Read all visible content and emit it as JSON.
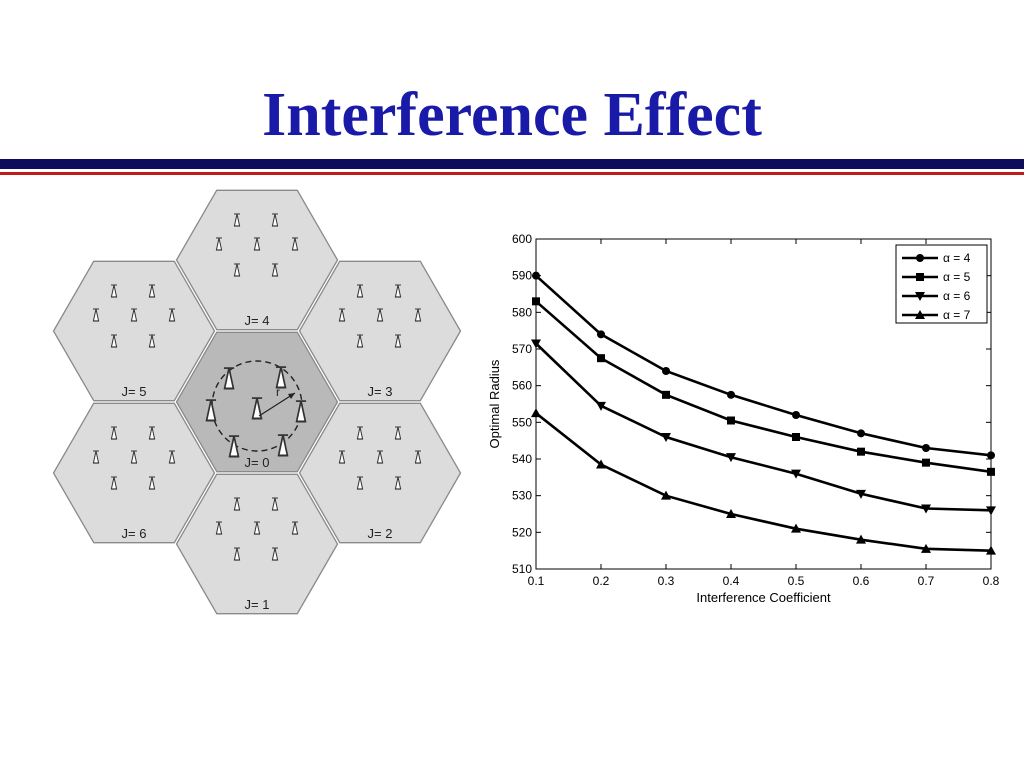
{
  "slide": {
    "title": "Interference Effect"
  },
  "colors": {
    "title": "#1a1aa8",
    "rule_navy": "#0d0d5c",
    "rule_red": "#c01a1a",
    "hex_fill": "#dcdcdc",
    "hex_center_fill": "#b9b9b9"
  },
  "diagram": {
    "cells": [
      {
        "label": "J= 0"
      },
      {
        "label": "J= 1"
      },
      {
        "label": "J= 2"
      },
      {
        "label": "J= 3"
      },
      {
        "label": "J= 4"
      },
      {
        "label": "J= 5"
      },
      {
        "label": "J= 6"
      }
    ],
    "radius_label": "r"
  },
  "chart_data": {
    "type": "line",
    "xlabel": "Interference Coefficient",
    "ylabel": "Optimal Radius",
    "x": [
      0.1,
      0.2,
      0.3,
      0.4,
      0.5,
      0.6,
      0.7,
      0.8
    ],
    "xlim": [
      0.1,
      0.8
    ],
    "ylim": [
      510,
      600
    ],
    "xticks": [
      "0.1",
      "0.2",
      "0.3",
      "0.4",
      "0.5",
      "0.6",
      "0.7",
      "0.8"
    ],
    "yticks": [
      "510",
      "520",
      "530",
      "540",
      "550",
      "560",
      "570",
      "580",
      "590",
      "600"
    ],
    "grid": false,
    "legend_position": "top-right",
    "series": [
      {
        "name": "α = 4",
        "marker": "circle",
        "values": [
          590,
          574,
          564,
          557.5,
          552,
          547,
          543,
          541
        ]
      },
      {
        "name": "α = 5",
        "marker": "square",
        "values": [
          583,
          567.5,
          557.5,
          550.5,
          546,
          542,
          539,
          536.5
        ]
      },
      {
        "name": "α = 6",
        "marker": "triangle-down",
        "values": [
          571.5,
          554.5,
          546,
          540.5,
          536,
          530.5,
          526.5,
          526
        ]
      },
      {
        "name": "α = 7",
        "marker": "triangle-up",
        "values": [
          552.5,
          538.5,
          530,
          525,
          521,
          518,
          515.5,
          515
        ]
      }
    ]
  }
}
